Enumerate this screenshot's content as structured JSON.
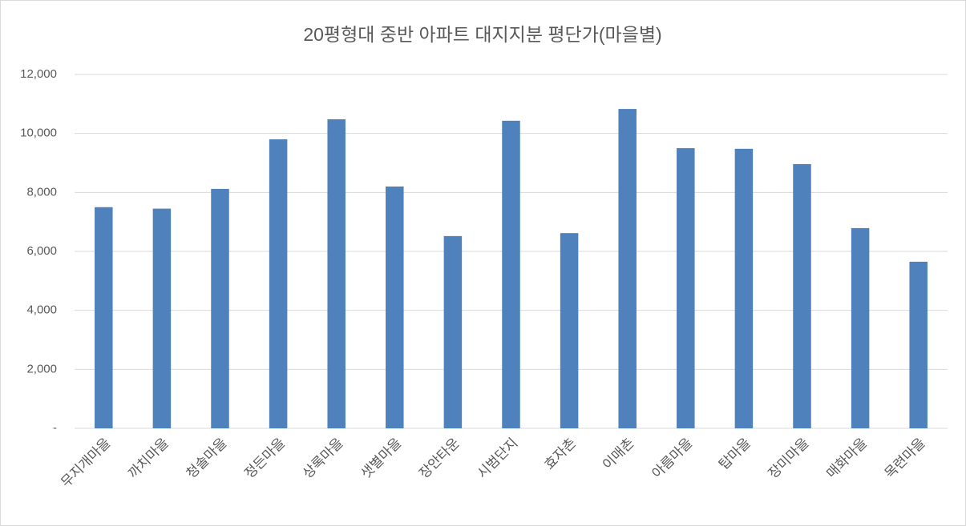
{
  "chart_data": {
    "type": "bar",
    "title": "20평형대 중반 아파트 대지지분 평단가(마을별)",
    "categories": [
      "무지개마을",
      "까치마을",
      "청솔마을",
      "정든마을",
      "상록마을",
      "샛별마을",
      "장안타운",
      "시범단지",
      "효자촌",
      "이매촌",
      "아름마을",
      "탑마을",
      "장미마을",
      "매화마을",
      "목련마을"
    ],
    "values": [
      7500,
      7450,
      8120,
      9800,
      10480,
      8200,
      6520,
      10430,
      6620,
      10830,
      9500,
      9480,
      8960,
      6790,
      5650
    ],
    "color": "#4f81bd",
    "ylim": [
      0,
      12000
    ],
    "yticks": [
      {
        "value": 0,
        "label": "-"
      },
      {
        "value": 2000,
        "label": "2,000"
      },
      {
        "value": 4000,
        "label": "4,000"
      },
      {
        "value": 6000,
        "label": "6,000"
      },
      {
        "value": 8000,
        "label": "8,000"
      },
      {
        "value": 10000,
        "label": "10,000"
      },
      {
        "value": 12000,
        "label": "12,000"
      }
    ],
    "grid": true
  }
}
